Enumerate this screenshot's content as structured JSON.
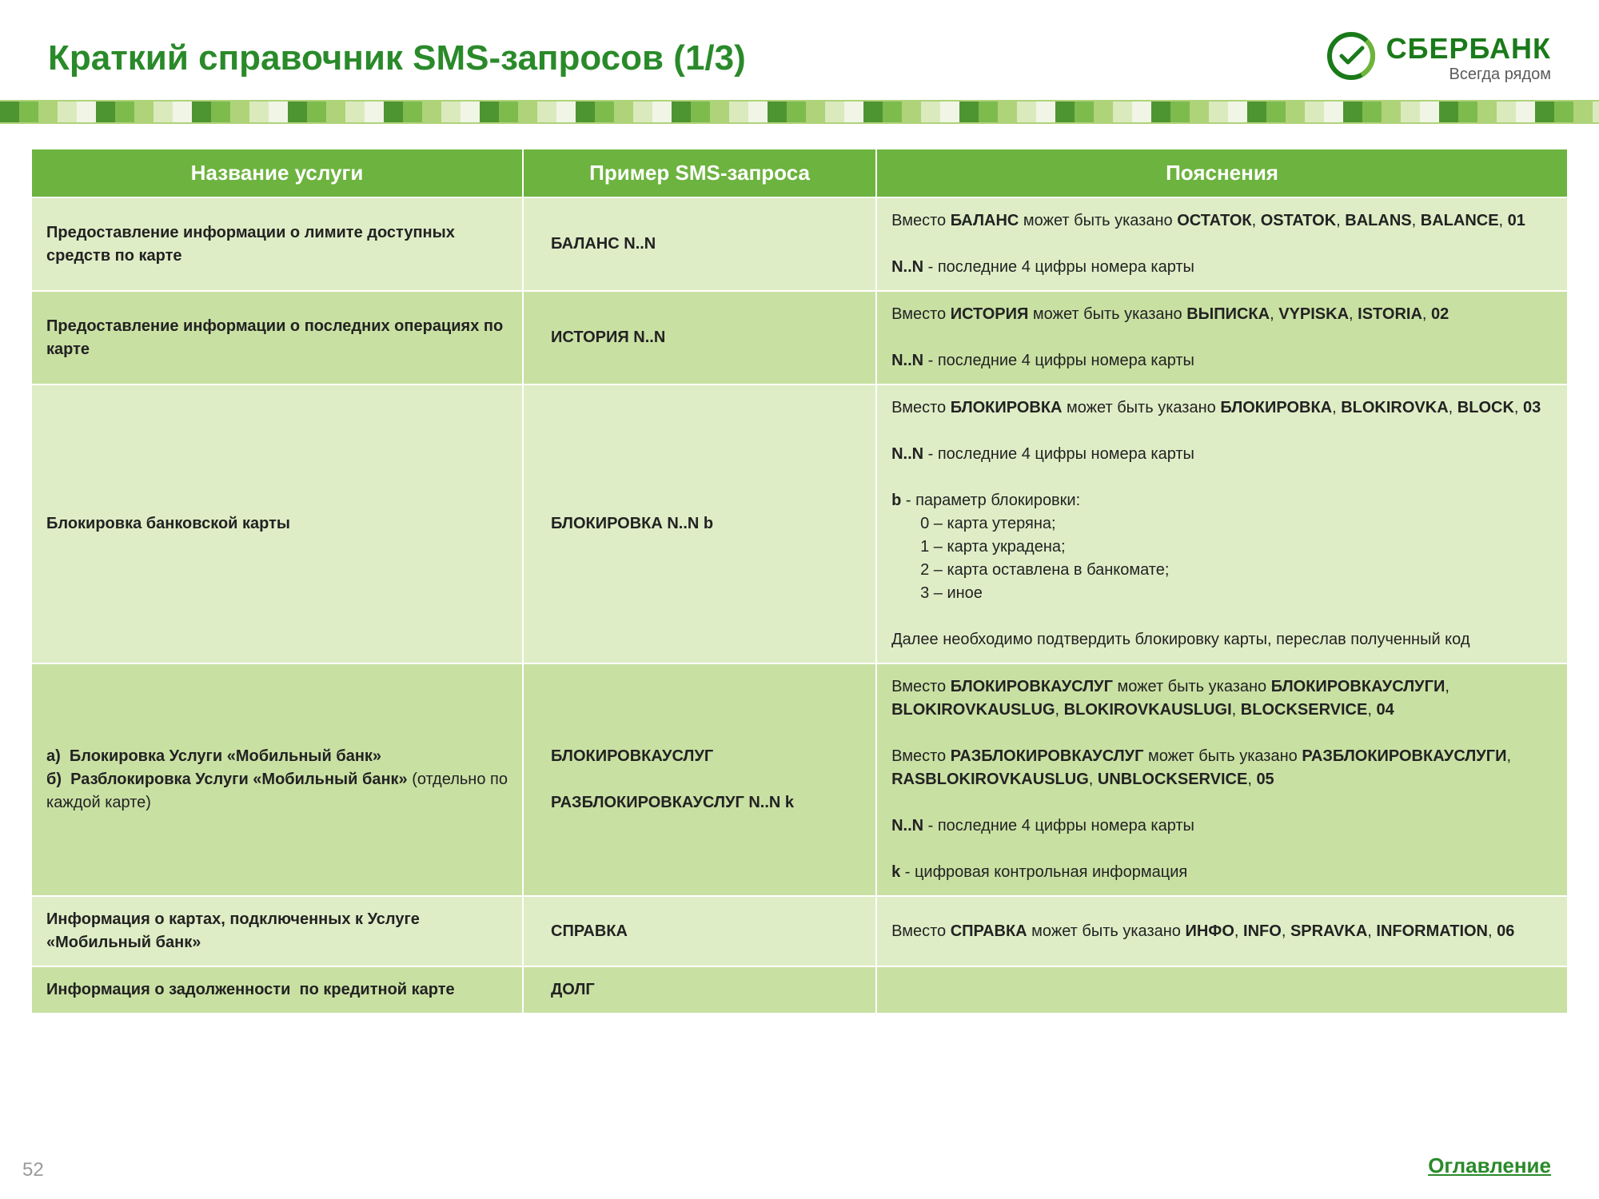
{
  "page": {
    "title": "Краткий справочник SMS-запросов (1/3)",
    "page_number": "52",
    "toc_label": "Оглавление"
  },
  "brand": {
    "name": "СБЕРБАНК",
    "tagline": "Всегда рядом"
  },
  "colors": {
    "title_color": "#2a8a2a",
    "header_row_bg": "#6db33f",
    "row_light": "#dfedc6",
    "row_dark": "#c9e0a3",
    "border": "#ffffff"
  },
  "table": {
    "column_widths": [
      "32%",
      "23%",
      "45%"
    ],
    "columns": [
      "Название услуги",
      "Пример SMS-запроса",
      "Пояснения"
    ],
    "rows": [
      {
        "tone": "A",
        "service_html": "Предоставление информации о лимите доступных средств по карте",
        "example_html": "БАЛАНС N..N",
        "notes_html": "Вместо <b>БАЛАНС</b> может быть указано <b>ОСТАТОК</b>, <b>OSTATOK</b>, <b>BALANS</b>, <b>BALANCE</b>, <b>01</b><br><br><b>N..N</b> - последние 4 цифры номера карты"
      },
      {
        "tone": "B",
        "service_html": "Предоставление информации о последних операциях по карте",
        "example_html": "ИСТОРИЯ N..N",
        "notes_html": "Вместо <b>ИСТОРИЯ</b> может быть указано <b>ВЫПИСКА</b>, <b>VYPISKA</b>, <b>ISTORIA</b>, <b>02</b><br><br><b>N..N</b> - последние 4 цифры номера карты"
      },
      {
        "tone": "A",
        "service_html": "Блокировка банковской карты",
        "example_html": "БЛОКИРОВКА N..N b",
        "notes_html": "Вместо <b>БЛОКИРОВКА</b> может быть указано <b>БЛОКИРОВКА</b>, <b>BLOKIROVKA</b>, <b>BLOCK</b>, <b>03</b><br><br><b>N..N</b> - последние 4 цифры номера карты<br><br><b>b</b> - параметр блокировки:<br><div class='sublist'>0 – карта утеряна;<br>1 – карта украдена;<br>2 – карта оставлена в банкомате;<br>3 – иное</div><br>Далее необходимо подтвердить блокировку карты, переслав полученный код"
      },
      {
        "tone": "B",
        "service_html": "а)&nbsp; Блокировка Услуги «Мобильный банк»<br>б)&nbsp; Разблокировка Услуги «Мобильный банк» <span class='thin'>(отдельно по каждой карте)</span>",
        "example_html": "БЛОКИРОВКАУСЛУГ<br><br>РАЗБЛОКИРОВКАУСЛУГ N..N k",
        "notes_html": "Вместо <b>БЛОКИРОВКАУСЛУГ</b> может быть указано <b>БЛОКИРОВКАУСЛУГИ</b>, <b>BLOKIROVKAUSLUG</b>, <b>BLOKIROVKAUSLUGI</b>, <b>BLOCKSERVICE</b>, <b>04</b><br><br>Вместо <b>РАЗБЛОКИРОВКАУСЛУГ</b> может быть указано <b>РАЗБЛОКИРОВКАУСЛУГИ</b>, <b>RASBLOKIROVKAUSLUG</b>, <b>UNBLOCKSERVICE</b>, <b>05</b><br><br><b>N..N</b> - последние 4 цифры номера карты<br><br><b>k</b> - цифровая контрольная информация"
      },
      {
        "tone": "A",
        "service_html": "Информация о картах, подключенных к Услуге «Мобильный банк»",
        "example_html": "СПРАВКА",
        "notes_html": "Вместо <b>СПРАВКА</b> может быть указано <b>ИНФО</b>, <b>INFO</b>, <b>SPRAVKA</b>, <b>INFORMATION</b>, <b>06</b>"
      },
      {
        "tone": "B",
        "service_html": "Информация о задолженности &nbsp;по кредитной карте",
        "example_html": "ДОЛГ",
        "notes_html": ""
      }
    ]
  }
}
